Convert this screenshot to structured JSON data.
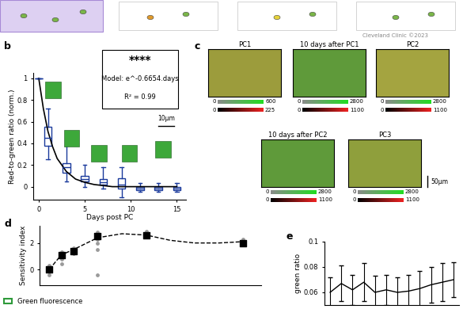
{
  "watermark": "Cleveland Clinic ©2023",
  "chart_data": [
    {
      "panel": "b",
      "type": "box",
      "x_label": "Days post PC",
      "y_label": "Red-to-green ratio (norm.)",
      "x": [
        0,
        1,
        3,
        5,
        7,
        9,
        11,
        13,
        15
      ],
      "boxes": [
        {
          "whislo": 1,
          "q1": 1,
          "med": 1,
          "q3": 1,
          "whishi": 1
        },
        {
          "whislo": 0.25,
          "q1": 0.38,
          "med": 0.45,
          "q3": 0.55,
          "whishi": 0.72
        },
        {
          "whislo": 0.05,
          "q1": 0.13,
          "med": 0.18,
          "q3": 0.22,
          "whishi": 0.38
        },
        {
          "whislo": 0.0,
          "q1": 0.05,
          "med": 0.07,
          "q3": 0.1,
          "whishi": 0.2
        },
        {
          "whislo": -0.02,
          "q1": 0.02,
          "med": 0.04,
          "q3": 0.07,
          "whishi": 0.18
        },
        {
          "whislo": -0.1,
          "q1": -0.02,
          "med": 0.02,
          "q3": 0.08,
          "whishi": 0.18
        },
        {
          "whislo": -0.05,
          "q1": -0.03,
          "med": -0.02,
          "q3": 0.0,
          "whishi": 0.03
        },
        {
          "whislo": -0.05,
          "q1": -0.03,
          "med": -0.02,
          "q3": 0.0,
          "whishi": 0.03
        },
        {
          "whislo": -0.05,
          "q1": -0.03,
          "med": -0.02,
          "q3": 0.0,
          "whishi": 0.03
        }
      ],
      "color": "#1a3a9c",
      "fit": {
        "x": [
          0,
          0.5,
          1,
          1.5,
          2,
          3,
          4,
          5,
          6,
          7,
          8,
          10,
          12,
          15
        ],
        "values": [
          1,
          0.72,
          0.51,
          0.37,
          0.26,
          0.14,
          0.07,
          0.04,
          0.02,
          0.01,
          0,
          0,
          0,
          0
        ],
        "color": "#000000"
      },
      "xlim": [
        -0.6,
        16
      ],
      "xticks": [
        0,
        5,
        10,
        15
      ],
      "ylim": [
        -0.12,
        1.05
      ],
      "yticks": [
        0,
        0.2,
        0.4,
        0.6,
        0.8,
        1
      ],
      "annotations": [
        "****",
        "Model: e^-0.6654.days",
        "R² = 0.99"
      ],
      "scale_bar": "10μm"
    },
    {
      "panel": "d",
      "type": "scatter",
      "y_label": "Sensitivity index",
      "tick_labels": "y",
      "xlim": [
        -0.8,
        17.5
      ],
      "ylim": [
        -1.2,
        3.3
      ],
      "yticks": [
        0,
        2
      ],
      "series": [
        {
          "type": "scatter",
          "color": "#9a9a9a",
          "marker": "circle",
          "x": [
            0,
            0,
            0,
            0,
            1,
            1,
            1,
            1,
            2,
            2,
            2,
            4,
            4,
            4,
            4,
            4,
            8,
            8,
            8,
            16,
            16,
            16
          ],
          "values": [
            -0.4,
            0.3,
            -0.2,
            0.1,
            0.8,
            1.3,
            0.4,
            1.0,
            1.2,
            1.6,
            1.5,
            2.3,
            2.8,
            1.5,
            -0.4,
            2.0,
            2.5,
            2.7,
            2.9,
            2.1,
            2.3,
            1.9
          ]
        },
        {
          "type": "scatter",
          "color": "#000000",
          "marker": "square",
          "x": [
            0,
            1,
            2,
            4,
            8,
            16
          ],
          "values": [
            0,
            1.1,
            1.4,
            2.5,
            2.6,
            2.0
          ]
        },
        {
          "type": "line",
          "color": "#000000",
          "line_style": "dashed",
          "x": [
            0,
            1,
            2,
            4,
            6,
            8,
            10,
            12,
            14,
            16
          ],
          "values": [
            0,
            1.1,
            1.5,
            2.4,
            2.7,
            2.6,
            2.2,
            2.0,
            2.0,
            2.1
          ]
        }
      ],
      "legend_items": [
        {
          "name": "Green fluorescence",
          "color": "#2e9a3a"
        }
      ],
      "legend": "lower left"
    },
    {
      "panel": "e",
      "type": "line",
      "y_label": "green ratio",
      "tick_labels": "y",
      "x": [
        1,
        2,
        3,
        4,
        5,
        6,
        7,
        8,
        9,
        10,
        11,
        12
      ],
      "values": [
        0.06,
        0.067,
        0.062,
        0.068,
        0.06,
        0.062,
        0.06,
        0.061,
        0.063,
        0.066,
        0.068,
        0.07
      ],
      "errors": [
        0.012,
        0.014,
        0.012,
        0.015,
        0.013,
        0.012,
        0.012,
        0.013,
        0.014,
        0.014,
        0.015,
        0.014
      ],
      "color": "#000000",
      "xlim": [
        0.5,
        12.5
      ],
      "ylim": [
        0.05,
        0.1
      ],
      "yticks": [
        0.06,
        0.08,
        0.1
      ]
    }
  ],
  "images": {
    "panel": "c",
    "scale_bar": "50μm",
    "items": [
      {
        "title": "PC1",
        "color": "#9c9c3c",
        "green_range": [
          0,
          600
        ],
        "red_range": [
          0,
          225
        ]
      },
      {
        "title": "10 days after PC1",
        "color": "#5f9a3a",
        "green_range": [
          0,
          2800
        ],
        "red_range": [
          0,
          1100
        ]
      },
      {
        "title": "PC2",
        "color": "#a4a440",
        "green_range": [
          0,
          2800
        ],
        "red_range": [
          0,
          1100
        ]
      },
      {
        "title": "10 days after PC2",
        "color": "#5f9a3a",
        "green_range": [
          0,
          2800
        ],
        "red_range": [
          0,
          1100
        ]
      },
      {
        "title": "PC3",
        "color": "#8f9f3c",
        "green_range": [
          0,
          2800
        ],
        "red_range": [
          0,
          1100
        ]
      }
    ]
  }
}
